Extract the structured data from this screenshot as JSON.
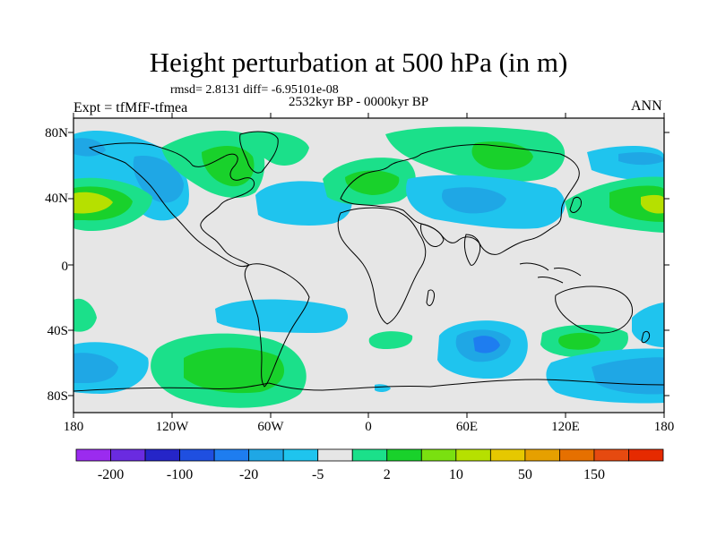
{
  "title": "Height perturbation at 500 hPa (in m)",
  "stats": "rmsd= 2.8131 diff= -6.95101e-08",
  "period": "2532kyr BP - 0000kyr BP",
  "experiment": "Expt = tfMfF-tfmea",
  "season": "ANN",
  "lat_labels": [
    "80N",
    "40N",
    "0",
    "40S",
    "80S"
  ],
  "lon_labels": [
    "180",
    "120W",
    "60W",
    "0",
    "60E",
    "120E",
    "180"
  ],
  "colorbar": {
    "colors": [
      "#9B2BEF",
      "#6A2BE0",
      "#2525C8",
      "#1F4FE0",
      "#1E7DF0",
      "#1FA7E5",
      "#1FC4EE",
      "#E6E6E6",
      "#1BE08A",
      "#19D12B",
      "#7AE010",
      "#B6E000",
      "#E6C800",
      "#E6A000",
      "#E67000",
      "#E64A10",
      "#E62A00"
    ],
    "labels": [
      "-200",
      "-100",
      "-20",
      "-5",
      "2",
      "10",
      "50",
      "150"
    ]
  },
  "colors": {
    "background": "#E6E6E6",
    "negative_light": "#1FC4EE",
    "negative_mid": "#1FA7E5",
    "negative_strong": "#1E7DF0",
    "positive_light": "#1BE08A",
    "positive_mid": "#19D12B",
    "positive_strong": "#B6E000"
  }
}
